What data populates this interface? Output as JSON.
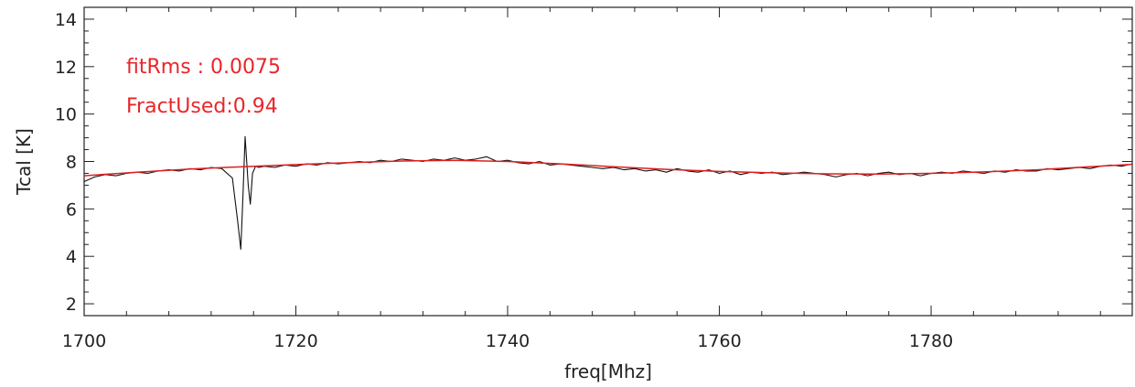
{
  "chart_data": {
    "type": "line",
    "xlabel": "freq[Mhz]",
    "ylabel": "Tcal [K]",
    "xlim": [
      1700,
      1799
    ],
    "ylim": [
      1.5,
      14.5
    ],
    "x_ticks": [
      1700,
      1720,
      1740,
      1760,
      1780
    ],
    "y_ticks": [
      2,
      4,
      6,
      8,
      10,
      12,
      14
    ],
    "x_minor_step": 4,
    "y_minor_step": 0.5,
    "grid": false,
    "annotations": [
      {
        "label": "fitRms",
        "separator": "   : ",
        "value": "0.0075"
      },
      {
        "label": "FractUsed",
        "separator": ":",
        "value": "0.94"
      }
    ],
    "annotation_color": "#e8262a",
    "series": [
      {
        "style": "measured",
        "color": "#111111",
        "x": [
          1700,
          1701,
          1702,
          1703,
          1704,
          1705,
          1706,
          1707,
          1708,
          1709,
          1710,
          1711,
          1712,
          1713,
          1714,
          1714.5,
          1714.8,
          1715.0,
          1715.2,
          1715.5,
          1715.7,
          1715.9,
          1716.2,
          1716.5,
          1717,
          1718,
          1719,
          1720,
          1721,
          1722,
          1723,
          1724,
          1725,
          1726,
          1727,
          1728,
          1729,
          1730,
          1731,
          1732,
          1733,
          1734,
          1735,
          1736,
          1737,
          1738,
          1739,
          1740,
          1741,
          1742,
          1743,
          1744,
          1745,
          1746,
          1747,
          1748,
          1749,
          1750,
          1751,
          1752,
          1753,
          1754,
          1755,
          1756,
          1757,
          1758,
          1759,
          1760,
          1761,
          1762,
          1763,
          1764,
          1765,
          1766,
          1767,
          1768,
          1769,
          1770,
          1771,
          1772,
          1773,
          1774,
          1775,
          1776,
          1777,
          1778,
          1779,
          1780,
          1781,
          1782,
          1783,
          1784,
          1785,
          1786,
          1787,
          1788,
          1789,
          1790,
          1791,
          1792,
          1793,
          1794,
          1795,
          1796,
          1797,
          1798,
          1799
        ],
        "y": [
          7.15,
          7.35,
          7.45,
          7.4,
          7.5,
          7.55,
          7.5,
          7.6,
          7.65,
          7.6,
          7.7,
          7.65,
          7.75,
          7.7,
          7.3,
          5.5,
          4.3,
          6.5,
          9.05,
          7.0,
          6.2,
          7.5,
          7.8,
          7.75,
          7.8,
          7.75,
          7.85,
          7.8,
          7.9,
          7.85,
          7.95,
          7.9,
          7.95,
          8.0,
          7.95,
          8.05,
          8.0,
          8.1,
          8.05,
          8.0,
          8.1,
          8.05,
          8.15,
          8.05,
          8.1,
          8.2,
          8.0,
          8.05,
          7.95,
          7.9,
          8.0,
          7.85,
          7.9,
          7.85,
          7.8,
          7.75,
          7.7,
          7.75,
          7.65,
          7.7,
          7.6,
          7.65,
          7.55,
          7.7,
          7.6,
          7.55,
          7.65,
          7.5,
          7.6,
          7.45,
          7.55,
          7.5,
          7.55,
          7.45,
          7.5,
          7.55,
          7.5,
          7.45,
          7.35,
          7.45,
          7.5,
          7.4,
          7.5,
          7.55,
          7.45,
          7.5,
          7.4,
          7.5,
          7.55,
          7.5,
          7.6,
          7.55,
          7.5,
          7.6,
          7.55,
          7.65,
          7.6,
          7.6,
          7.7,
          7.65,
          7.7,
          7.75,
          7.7,
          7.8,
          7.85,
          7.8,
          7.9
        ]
      },
      {
        "style": "fit",
        "color": "#dd1f1f",
        "x": [
          1700,
          1705,
          1710,
          1715,
          1720,
          1725,
          1730,
          1735,
          1740,
          1745,
          1750,
          1755,
          1760,
          1765,
          1770,
          1775,
          1780,
          1785,
          1790,
          1795,
          1799
        ],
        "y": [
          7.4,
          7.55,
          7.68,
          7.78,
          7.87,
          7.95,
          8.02,
          8.05,
          8.0,
          7.9,
          7.78,
          7.67,
          7.58,
          7.52,
          7.48,
          7.47,
          7.5,
          7.56,
          7.65,
          7.78,
          7.88
        ]
      }
    ]
  }
}
